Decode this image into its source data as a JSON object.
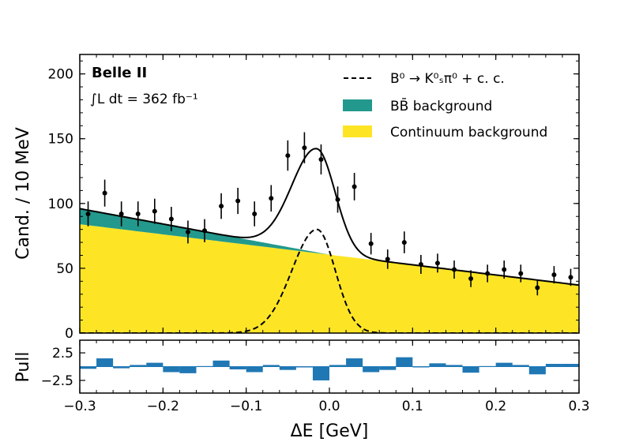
{
  "chart_data": [
    {
      "type": "line",
      "panel": "main",
      "experiment_label": "Belle II",
      "luminosity_label": "∫L dt = 362 fb⁻¹",
      "xlabel": "ΔE [GeV]",
      "ylabel": "Cand. / 10 MeV",
      "xlim": [
        -0.3,
        0.3
      ],
      "ylim": [
        0,
        215
      ],
      "xticks": [
        "−0.3",
        "−0.2",
        "−0.1",
        "0.0",
        "0.1",
        "0.2",
        "0.3"
      ],
      "xtick_values": [
        -0.3,
        -0.2,
        -0.1,
        0.0,
        0.1,
        0.2,
        0.3
      ],
      "yticks": [
        "0",
        "50",
        "100",
        "150",
        "200"
      ],
      "ytick_values": [
        0,
        50,
        100,
        150,
        200
      ],
      "legend": [
        {
          "label": "B⁰ → K⁰ₛπ⁰ + c. c.",
          "style": "dashed-line",
          "color": "#000000"
        },
        {
          "label": "BB̄ background",
          "style": "filled",
          "color": "#22998c"
        },
        {
          "label": "Continuum background",
          "style": "filled",
          "color": "#fde526"
        }
      ],
      "legend_position": "top-right",
      "colors": {
        "bbbar": "#22998c",
        "continuum": "#fde526",
        "signal": "#000000",
        "total": "#000000",
        "data": "#000000"
      },
      "model": {
        "continuum": {
          "at_x_min": 84,
          "at_x_max": 37
        },
        "bbbar": {
          "at_x_min": 12,
          "vanishes_at_x": 0.0
        },
        "signal": {
          "amplitude": 80,
          "mean": -0.015,
          "width_left": 0.03,
          "width_right": 0.022
        }
      },
      "data_points": {
        "x": [
          -0.29,
          -0.27,
          -0.25,
          -0.23,
          -0.21,
          -0.19,
          -0.17,
          -0.15,
          -0.13,
          -0.11,
          -0.09,
          -0.07,
          -0.05,
          -0.03,
          -0.01,
          0.01,
          0.03,
          0.05,
          0.07,
          0.09,
          0.11,
          0.13,
          0.15,
          0.17,
          0.19,
          0.21,
          0.23,
          0.25,
          0.27,
          0.29
        ],
        "y": [
          92,
          108,
          92,
          92,
          94,
          88,
          78,
          79,
          98,
          102,
          92,
          104,
          137,
          143,
          134,
          103,
          113,
          69,
          57,
          70,
          53,
          54,
          49,
          42,
          46,
          49,
          46,
          35,
          45,
          43
        ],
        "yerr": [
          9.6,
          10.4,
          9.6,
          9.6,
          9.7,
          9.4,
          8.8,
          8.9,
          9.9,
          10.1,
          9.6,
          10.2,
          11.7,
          12.0,
          11.6,
          10.1,
          10.6,
          8.3,
          7.5,
          8.4,
          7.3,
          7.3,
          7.0,
          6.5,
          6.8,
          7.0,
          6.8,
          5.9,
          6.7,
          6.6
        ]
      }
    },
    {
      "type": "bar",
      "panel": "pull",
      "ylabel": "Pull",
      "xlabel": "ΔE [GeV]",
      "xlim": [
        -0.3,
        0.3
      ],
      "ylim": [
        -4.8,
        4.8
      ],
      "yticks": [
        "2.5",
        "−2.5"
      ],
      "ytick_values": [
        2.5,
        -2.5
      ],
      "color": "#1f77b4",
      "x": [
        -0.29,
        -0.27,
        -0.25,
        -0.23,
        -0.21,
        -0.19,
        -0.17,
        -0.15,
        -0.13,
        -0.11,
        -0.09,
        -0.07,
        -0.05,
        -0.03,
        -0.01,
        0.01,
        0.03,
        0.05,
        0.07,
        0.09,
        0.11,
        0.13,
        0.15,
        0.17,
        0.19,
        0.21,
        0.23,
        0.25,
        0.27,
        0.29
      ],
      "values": [
        -0.4,
        1.5,
        -0.3,
        0.3,
        0.7,
        -1.0,
        -1.2,
        0.1,
        1.1,
        -0.5,
        -1.0,
        0.3,
        -0.6,
        0.0,
        -2.5,
        0.3,
        1.5,
        -1.0,
        -0.6,
        1.7,
        -0.1,
        0.6,
        0.3,
        -1.1,
        0.1,
        0.7,
        0.3,
        -1.4,
        0.5,
        0.5
      ]
    }
  ]
}
